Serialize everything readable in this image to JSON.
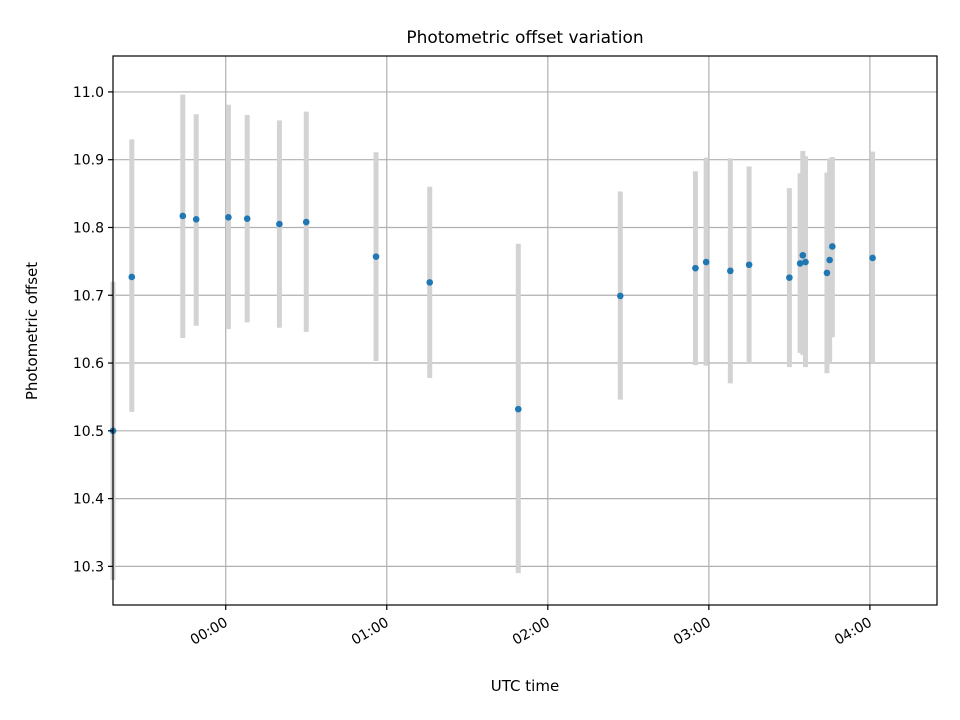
{
  "chart_data": {
    "type": "scatter",
    "title": "Photometric offset variation",
    "xlabel": "UTC time",
    "ylabel": "Photometric offset",
    "x_axis": {
      "kind": "time",
      "range": [
        "-00:42",
        "04:25"
      ],
      "ticks": [
        "00:00",
        "01:00",
        "02:00",
        "03:00",
        "04:00"
      ]
    },
    "y_axis": {
      "range": [
        10.243,
        11.053
      ],
      "ticks": [
        "10.3",
        "10.4",
        "10.5",
        "10.6",
        "10.7",
        "10.8",
        "10.9",
        "11.0"
      ]
    },
    "grid": true,
    "legend": "none",
    "colors": {
      "marker": "#1f77b4",
      "errorbar": "#d3d3d3",
      "grid": "#b0b0b0"
    },
    "points": [
      {
        "time": "-00:42",
        "y": 10.5,
        "err": [
          10.28,
          10.72
        ]
      },
      {
        "time": "-00:35",
        "y": 10.727,
        "err": [
          10.528,
          10.93
        ]
      },
      {
        "time": "-00:16",
        "y": 10.817,
        "err": [
          10.637,
          10.996
        ]
      },
      {
        "time": "-00:11",
        "y": 10.812,
        "err": [
          10.655,
          10.967
        ]
      },
      {
        "time": "00:01",
        "y": 10.815,
        "err": [
          10.65,
          10.981
        ]
      },
      {
        "time": "00:08",
        "y": 10.813,
        "err": [
          10.66,
          10.966
        ]
      },
      {
        "time": "00:20",
        "y": 10.805,
        "err": [
          10.652,
          10.958
        ]
      },
      {
        "time": "00:30",
        "y": 10.808,
        "err": [
          10.646,
          10.971
        ]
      },
      {
        "time": "00:56",
        "y": 10.757,
        "err": [
          10.603,
          10.911
        ]
      },
      {
        "time": "01:16",
        "y": 10.719,
        "err": [
          10.578,
          10.86
        ]
      },
      {
        "time": "01:49",
        "y": 10.532,
        "err": [
          10.29,
          10.776
        ]
      },
      {
        "time": "02:27",
        "y": 10.699,
        "err": [
          10.546,
          10.853
        ]
      },
      {
        "time": "02:55",
        "y": 10.74,
        "err": [
          10.597,
          10.883
        ]
      },
      {
        "time": "02:59",
        "y": 10.749,
        "err": [
          10.596,
          10.903
        ]
      },
      {
        "time": "03:08",
        "y": 10.736,
        "err": [
          10.57,
          10.902
        ]
      },
      {
        "time": "03:15",
        "y": 10.745,
        "err": [
          10.6,
          10.89
        ]
      },
      {
        "time": "03:30",
        "y": 10.726,
        "err": [
          10.594,
          10.858
        ]
      },
      {
        "time": "03:34",
        "y": 10.747,
        "err": [
          10.615,
          10.88
        ]
      },
      {
        "time": "03:35",
        "y": 10.759,
        "err": [
          10.612,
          10.913
        ]
      },
      {
        "time": "03:36",
        "y": 10.749,
        "err": [
          10.594,
          10.905
        ]
      },
      {
        "time": "03:44",
        "y": 10.733,
        "err": [
          10.585,
          10.881
        ]
      },
      {
        "time": "03:45",
        "y": 10.752,
        "err": [
          10.6,
          10.902
        ]
      },
      {
        "time": "03:46",
        "y": 10.772,
        "err": [
          10.638,
          10.904
        ]
      },
      {
        "time": "04:01",
        "y": 10.755,
        "err": [
          10.6,
          10.912
        ]
      }
    ]
  }
}
